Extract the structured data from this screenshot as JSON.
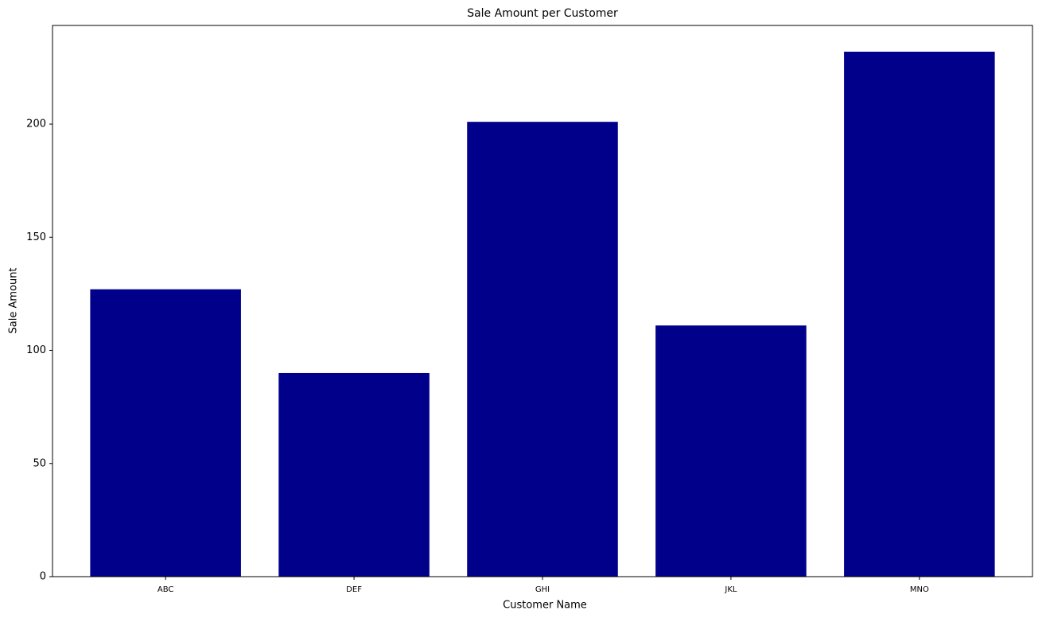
{
  "chart_data": {
    "type": "bar",
    "title": "Sale Amount per Customer",
    "x_label": "Customer Name",
    "y_label": "Sale Amount",
    "categories": [
      "ABC",
      "DEF",
      "GHI",
      "JKL",
      "MNO"
    ],
    "values": [
      127,
      90,
      201,
      111,
      232
    ],
    "color": "#00008b",
    "ylim": [
      0,
      243.6
    ],
    "yticks": [
      0,
      50,
      100,
      150,
      200
    ],
    "grid": false
  }
}
